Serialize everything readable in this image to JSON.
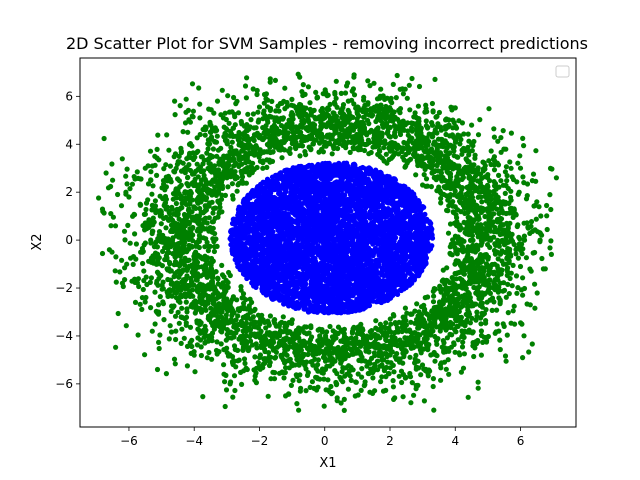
{
  "chart_data": {
    "type": "scatter",
    "title": "2D Scatter Plot for SVM Samples - removing incorrect predictions",
    "xlabel": "X1",
    "ylabel": "X2",
    "xlim": [
      -7.5,
      7.7
    ],
    "ylim": [
      -7.8,
      7.6
    ],
    "x_ticks": [
      -6,
      -4,
      -2,
      0,
      2,
      4,
      6
    ],
    "y_ticks": [
      -6,
      -4,
      -2,
      0,
      2,
      4,
      6
    ],
    "x_tick_labels": [
      "−6",
      "−4",
      "−2",
      "0",
      "2",
      "4",
      "6"
    ],
    "y_tick_labels": [
      "−6",
      "−4",
      "−2",
      "0",
      "2",
      "4",
      "6"
    ],
    "grid": false,
    "legend": {
      "placement": "top-right",
      "entries": []
    },
    "series": [
      {
        "color": "#008000",
        "description": "outer ring class",
        "center": [
          0.3,
          0.05
        ],
        "inner_radius": [
          3.2,
          3.3
        ],
        "outer_radius": [
          7.0,
          6.9
        ],
        "approx_count": 4500,
        "sample_points": [
          [
            -6.8,
            1.2
          ],
          [
            -6.7,
            2.8
          ],
          [
            -6.6,
            -0.4
          ],
          [
            -6.5,
            2.5
          ],
          [
            -6.2,
            -1.8
          ],
          [
            -6.0,
            1.8
          ],
          [
            -5.8,
            -2.6
          ],
          [
            -5.5,
            3.0
          ],
          [
            -5.2,
            -3.5
          ],
          [
            -4.6,
            5.8
          ],
          [
            -4.2,
            4.5
          ],
          [
            -4.0,
            -4.8
          ],
          [
            -3.4,
            5.3
          ],
          [
            -3.1,
            -5.2
          ],
          [
            -2.9,
            -6.0
          ],
          [
            -1.8,
            5.9
          ],
          [
            -1.2,
            -6.5
          ],
          [
            -0.8,
            -7.1
          ],
          [
            -0.5,
            6.4
          ],
          [
            0.5,
            -6.8
          ],
          [
            0.9,
            6.9
          ],
          [
            1.7,
            6.0
          ],
          [
            1.8,
            -6.3
          ],
          [
            2.1,
            6.5
          ],
          [
            2.8,
            -6.2
          ],
          [
            3.3,
            5.7
          ],
          [
            3.8,
            -5.6
          ],
          [
            4.5,
            4.8
          ],
          [
            4.8,
            -4.8
          ],
          [
            5.2,
            4.3
          ],
          [
            5.5,
            -3.6
          ],
          [
            6.0,
            3.0
          ],
          [
            6.1,
            2.4
          ],
          [
            6.3,
            -2.7
          ],
          [
            6.5,
            1.6
          ],
          [
            6.7,
            -1.2
          ],
          [
            6.9,
            1.9
          ],
          [
            7.1,
            2.6
          ],
          [
            6.6,
            0.0
          ],
          [
            -6.4,
            -0.7
          ]
        ]
      },
      {
        "color": "#0000ff",
        "description": "inner disc class",
        "center": [
          0.2,
          0.1
        ],
        "radius": [
          3.2,
          3.25
        ],
        "approx_count": 5000,
        "sample_points": [
          [
            0.0,
            0.0
          ],
          [
            1.5,
            1.5
          ],
          [
            -1.5,
            -1.5
          ],
          [
            2.5,
            0.5
          ],
          [
            -2.8,
            0.0
          ],
          [
            0.5,
            3.0
          ],
          [
            -0.5,
            -3.0
          ],
          [
            2.8,
            -1.5
          ],
          [
            -2.0,
            2.0
          ],
          [
            1.0,
            -2.5
          ]
        ]
      }
    ]
  }
}
